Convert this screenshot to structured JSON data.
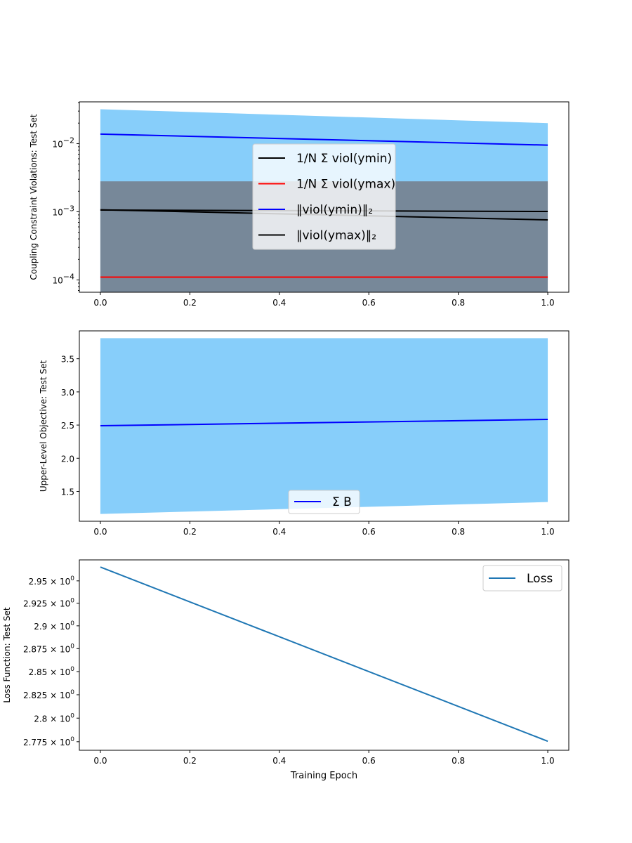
{
  "chart_data": [
    {
      "type": "line",
      "ylabel": "Coupling Constraint Violations: Test Set",
      "yscale": "log",
      "xlim": [
        -0.047,
        1.047
      ],
      "ylim": [
        6.6e-05,
        0.041
      ],
      "xticks": [
        "0.0",
        "0.2",
        "0.4",
        "0.6",
        "0.8",
        "1.0"
      ],
      "yticks": [
        {
          "value": 0.0001,
          "base": "10",
          "exp": "−4"
        },
        {
          "value": 0.001,
          "base": "10",
          "exp": "−3"
        },
        {
          "value": 0.01,
          "base": "10",
          "exp": "−2"
        }
      ],
      "bands": [
        {
          "color": "#87CEFA",
          "x": [
            0,
            1
          ],
          "lower": [
            0.0001,
            0.0001
          ],
          "upper": [
            0.032,
            0.02
          ]
        },
        {
          "color": "#778899",
          "x": [
            0,
            1
          ],
          "lower": [
            6.6e-05,
            6.6e-05
          ],
          "upper": [
            0.0028,
            0.0028
          ]
        }
      ],
      "series": [
        {
          "color": "#000000",
          "x": [
            0,
            1
          ],
          "y": [
            0.00107,
            0.00076
          ]
        },
        {
          "color": "#ff0000",
          "x": [
            0,
            1
          ],
          "y": [
            0.00011,
            0.00011
          ]
        },
        {
          "color": "#0000ff",
          "x": [
            0,
            1
          ],
          "y": [
            0.0138,
            0.0095
          ]
        },
        {
          "color": "#000000",
          "x": [
            0,
            1
          ],
          "y": [
            0.00106,
            0.00101
          ]
        }
      ],
      "legend": {
        "placement": "center",
        "entries": [
          {
            "color": "#000000",
            "label": "1/N Σ viol(ymin)"
          },
          {
            "color": "#ff0000",
            "label": "1/N Σ viol(ymax)"
          },
          {
            "color": "#0000ff",
            "label": "‖viol(ymin)‖₂"
          },
          {
            "color": "#000000",
            "label": "‖viol(ymax)‖₂"
          }
        ]
      }
    },
    {
      "type": "line",
      "ylabel": "Upper-Level Objective: Test Set",
      "yscale": "linear",
      "xlim": [
        -0.047,
        1.047
      ],
      "ylim": [
        1.05,
        3.92
      ],
      "xticks": [
        "0.0",
        "0.2",
        "0.4",
        "0.6",
        "0.8",
        "1.0"
      ],
      "yticks": [
        {
          "value": 1.5,
          "label": "1.5"
        },
        {
          "value": 2.0,
          "label": "2.0"
        },
        {
          "value": 2.5,
          "label": "2.5"
        },
        {
          "value": 3.0,
          "label": "3.0"
        },
        {
          "value": 3.5,
          "label": "3.5"
        }
      ],
      "bands": [
        {
          "color": "#87CEFA",
          "x": [
            0,
            1
          ],
          "lower": [
            1.16,
            1.34
          ],
          "upper": [
            3.81,
            3.81
          ]
        }
      ],
      "series": [
        {
          "color": "#0000ff",
          "x": [
            0,
            1
          ],
          "y": [
            2.49,
            2.585
          ]
        }
      ],
      "legend": {
        "placement": "lower center",
        "entries": [
          {
            "color": "#0000ff",
            "label": "Σ B"
          }
        ]
      }
    },
    {
      "type": "line",
      "ylabel": "Loss Function: Test Set",
      "xlabel": "Training Epoch",
      "yscale": "log",
      "xlim": [
        -0.047,
        1.047
      ],
      "ylim": [
        2.766,
        2.9736
      ],
      "xticks": [
        "0.0",
        "0.2",
        "0.4",
        "0.6",
        "0.8",
        "1.0"
      ],
      "yticks": [
        {
          "value": 2.775,
          "base": "2.775 × 10",
          "exp": "0"
        },
        {
          "value": 2.8,
          "base": "2.8 × 10",
          "exp": "0"
        },
        {
          "value": 2.825,
          "base": "2.825 × 10",
          "exp": "0"
        },
        {
          "value": 2.85,
          "base": "2.85 × 10",
          "exp": "0"
        },
        {
          "value": 2.875,
          "base": "2.875 × 10",
          "exp": "0"
        },
        {
          "value": 2.9,
          "base": "2.9 × 10",
          "exp": "0"
        },
        {
          "value": 2.925,
          "base": "2.925 × 10",
          "exp": "0"
        },
        {
          "value": 2.95,
          "base": "2.95 × 10",
          "exp": "0"
        }
      ],
      "bands": [],
      "series": [
        {
          "name": "Loss",
          "color": "#1f77b4",
          "x": [
            0,
            1
          ],
          "y": [
            2.9655,
            2.7755
          ]
        }
      ],
      "legend": {
        "placement": "upper right",
        "entries": [
          {
            "color": "#1f77b4",
            "label": "Loss"
          }
        ]
      }
    }
  ]
}
